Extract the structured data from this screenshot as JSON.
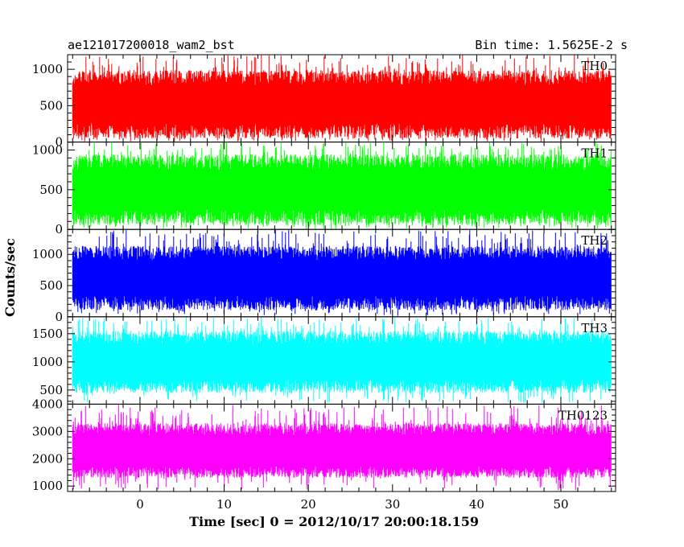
{
  "header": {
    "left_title": "ae121017200018_wam2_bst",
    "right_title": "Bin time: 1.5625E-2 s"
  },
  "chart_data": {
    "type": "line",
    "title": "ae121017200018_wam2_bst",
    "subtitle": "Bin time: 1.5625E-2 s",
    "xlabel": "Time [sec] 0 = 2012/10/17 20:00:18.159",
    "ylabel": "Counts/sec",
    "xlim": [
      -8.6,
      56.5
    ],
    "x_start": -8.0,
    "x_end": 56.0,
    "x_ticks": [
      0,
      10,
      20,
      30,
      40,
      50
    ],
    "grid": false,
    "panels": [
      {
        "name": "TH0",
        "color": "#ff0000",
        "ylim": [
          0,
          1200
        ],
        "y_ticks": [
          0,
          500,
          1000
        ],
        "typical_range": [
          60,
          1000
        ],
        "mean": 520,
        "spike_max": 1200
      },
      {
        "name": "TH1",
        "color": "#00ff00",
        "ylim": [
          0,
          1100
        ],
        "y_ticks": [
          0,
          500,
          1000
        ],
        "typical_range": [
          60,
          950
        ],
        "mean": 500,
        "spike_max": 1100
      },
      {
        "name": "TH2",
        "color": "#0000ff",
        "ylim": [
          0,
          1400
        ],
        "y_ticks": [
          0,
          500,
          1000
        ],
        "typical_range": [
          120,
          1150
        ],
        "mean": 620,
        "spike_max": 1400
      },
      {
        "name": "TH3",
        "color": "#00ffff",
        "ylim": [
          250,
          1800
        ],
        "y_ticks": [
          500,
          1000,
          1500
        ],
        "typical_range": [
          450,
          1550
        ],
        "mean": 1000,
        "spike_max": 1800
      },
      {
        "name": "TH0123",
        "color": "#ff00ff",
        "ylim": [
          800,
          4000
        ],
        "y_ticks": [
          1000,
          2000,
          3000,
          4000
        ],
        "typical_range": [
          1300,
          3300
        ],
        "mean": 2300,
        "spike_max": 4000
      }
    ]
  }
}
